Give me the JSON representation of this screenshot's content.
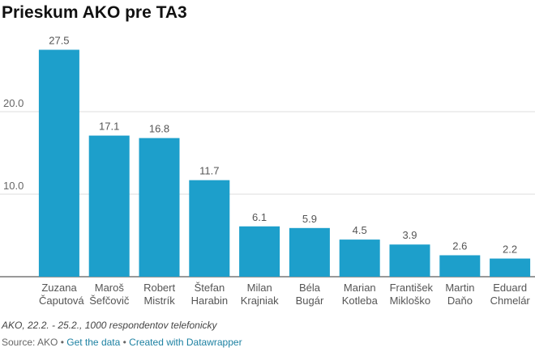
{
  "chart_data": {
    "type": "bar",
    "title": "Prieskum AKO pre TA3",
    "categories": [
      "Zuzana Čaputová",
      "Maroš Šefčovič",
      "Robert Mistrík",
      "Štefan Harabin",
      "Milan Krajniak",
      "Béla Bugár",
      "Marian Kotleba",
      "František Mikloško",
      "Martin Daňo",
      "Eduard Chmelár"
    ],
    "values": [
      27.5,
      17.1,
      16.8,
      11.7,
      6.1,
      5.9,
      4.5,
      3.9,
      2.6,
      2.2
    ],
    "color": "#1d9fcb",
    "ylim": [
      0,
      30
    ],
    "yticks": [
      {
        "value": 10,
        "label": "10.0"
      },
      {
        "value": 20,
        "label": "20.0"
      }
    ],
    "grid": true,
    "notes": "AKO, 22.2. - 25.2., 1000 respondentov telefonicky",
    "source": "Source: AKO",
    "links": [
      "Get the data",
      "Created with Datawrapper"
    ]
  }
}
